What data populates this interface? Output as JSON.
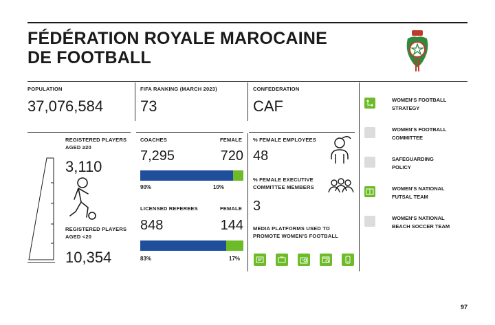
{
  "header": {
    "title_line1": "FÉDÉRATION ROYALE MAROCAINE",
    "title_line2": "DE FOOTBALL"
  },
  "stats": {
    "population_label": "POPULATION",
    "population_value": "37,076,584",
    "fifa_label": "FIFA RANKING (MARCH 2023)",
    "fifa_value": "73",
    "confed_label": "CONFEDERATION",
    "confed_value": "CAF"
  },
  "players": {
    "adult_label_line1": "REGISTERED PLAYERS",
    "adult_label_line2": "AGED ≥20",
    "adult_value": "3,110",
    "youth_label_line1": "REGISTERED PLAYERS",
    "youth_label_line2": "AGED <20",
    "youth_value": "10,354"
  },
  "coaches": {
    "label": "COACHES",
    "female_label": "FEMALE",
    "total": "7,295",
    "female": "720",
    "male_pct_label": "90%",
    "female_pct_label": "10%",
    "female_share": 10
  },
  "referees": {
    "label": "LICENSED REFEREES",
    "female_label": "FEMALE",
    "total": "848",
    "female": "144",
    "male_pct_label": "83%",
    "female_pct_label": "17%",
    "female_share": 17
  },
  "staff": {
    "employees_label": "% FEMALE EMPLOYEES",
    "employees_value": "48",
    "exec_label_line1": "% FEMALE EXECUTIVE",
    "exec_label_line2": "COMMITTEE MEMBERS",
    "exec_value": "3",
    "media_label_line1": "MEDIA PLATFORMS USED TO",
    "media_label_line2": "PROMOTE WOMEN'S FOOTBALL",
    "media_icons": [
      "newspaper-icon",
      "tv-icon",
      "radio-icon",
      "web-icon",
      "mobile-icon"
    ]
  },
  "sidebar": {
    "items": [
      {
        "line1": "WOMEN'S FOOTBALL",
        "line2": "STRATEGY",
        "active": true
      },
      {
        "line1": "WOMEN'S FOOTBALL",
        "line2": "COMMITTEE",
        "active": false
      },
      {
        "line1": "SAFEGUARDING",
        "line2": "POLICY",
        "active": false
      },
      {
        "line1": "WOMEN'S NATIONAL",
        "line2": "FUTSAL TEAM",
        "active": true
      },
      {
        "line1": "WOMEN'S NATIONAL",
        "line2": "BEACH SOCCER TEAM",
        "active": false
      }
    ]
  },
  "colors": {
    "accent_green": "#6dbb28",
    "bar_blue": "#1f4e9b",
    "inactive_grey": "#dcdcdc"
  },
  "page_number": "97"
}
